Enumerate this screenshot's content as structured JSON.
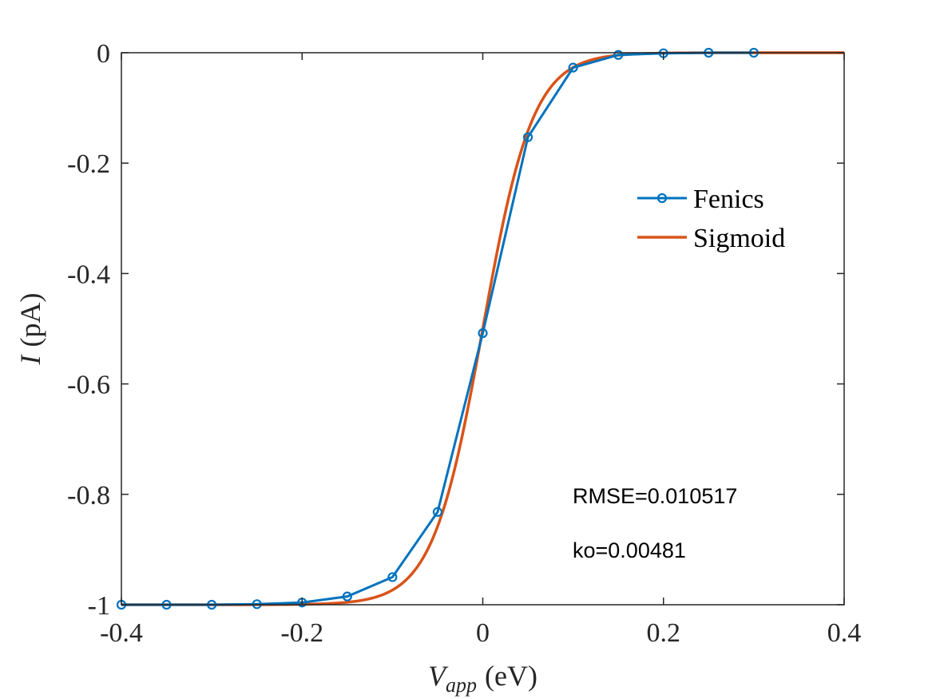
{
  "chart_data": {
    "type": "line",
    "title": "",
    "xlabel": {
      "symbol": "V",
      "subscript": "app",
      "unit": "(eV)"
    },
    "ylabel": {
      "symbol": "I",
      "unit": "(pA)"
    },
    "xlim": [
      -0.4,
      0.4
    ],
    "ylim": [
      -1,
      0
    ],
    "x_ticks": [
      "-0.4",
      "-0.2",
      "0",
      "0.2",
      "0.4"
    ],
    "x_tick_values": [
      -0.4,
      -0.2,
      0,
      0.2,
      0.4
    ],
    "y_ticks": [
      "0",
      "-0.2",
      "-0.4",
      "-0.6",
      "-0.8",
      "-1"
    ],
    "y_tick_values": [
      0,
      -0.2,
      -0.4,
      -0.6,
      -0.8,
      -1
    ],
    "grid": false,
    "legend_position": "top-right",
    "series": [
      {
        "name": "Fenics",
        "color": "#0072BD",
        "marker": "circle",
        "x": [
          -0.4,
          -0.35,
          -0.3,
          -0.25,
          -0.2,
          -0.15,
          -0.1,
          -0.05,
          0,
          0.05,
          0.1,
          0.15,
          0.2,
          0.25,
          0.3
        ],
        "y": [
          -1.0,
          -1.0,
          -1.0,
          -0.999,
          -0.996,
          -0.985,
          -0.95,
          -0.832,
          -0.508,
          -0.153,
          -0.027,
          -0.004,
          -0.001,
          0,
          0
        ]
      },
      {
        "name": "Sigmoid",
        "color": "#D95319",
        "marker": "none",
        "function": "logistic",
        "midpoint": 0,
        "x_range": [
          -0.4,
          0.4
        ],
        "y_range": [
          -1,
          0
        ]
      }
    ],
    "annotations": [
      "RMSE=0.010517",
      "ko=0.00481"
    ]
  }
}
